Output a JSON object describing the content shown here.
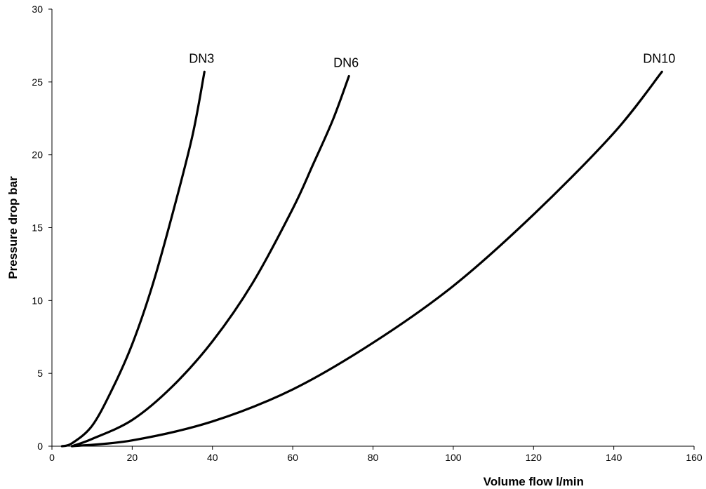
{
  "chart_data": {
    "type": "line",
    "title": "",
    "xlabel": "Volume flow l/min",
    "ylabel": "Pressure drop bar",
    "xlim": [
      0,
      160
    ],
    "ylim": [
      0,
      30
    ],
    "xticks": [
      0,
      20,
      40,
      60,
      80,
      100,
      120,
      140,
      160
    ],
    "yticks": [
      0,
      5,
      10,
      15,
      20,
      25,
      30
    ],
    "grid": false,
    "legend": "none",
    "series_color": "#000000",
    "series": [
      {
        "name": "DN3",
        "x": [
          2.5,
          5,
          10,
          15,
          20,
          25,
          30,
          35,
          38
        ],
        "y": [
          0,
          0.2,
          1.4,
          3.9,
          7.0,
          11.0,
          15.9,
          21.3,
          25.7
        ]
      },
      {
        "name": "DN6",
        "x": [
          5,
          10,
          20,
          30,
          40,
          50,
          60,
          65,
          70,
          74
        ],
        "y": [
          0,
          0.5,
          1.8,
          4.1,
          7.2,
          11.2,
          16.3,
          19.3,
          22.4,
          25.4
        ]
      },
      {
        "name": "DN10",
        "x": [
          5,
          20,
          40,
          60,
          80,
          100,
          120,
          140,
          152
        ],
        "y": [
          0,
          0.4,
          1.7,
          3.9,
          7.1,
          11.0,
          15.9,
          21.5,
          25.7
        ]
      }
    ]
  }
}
